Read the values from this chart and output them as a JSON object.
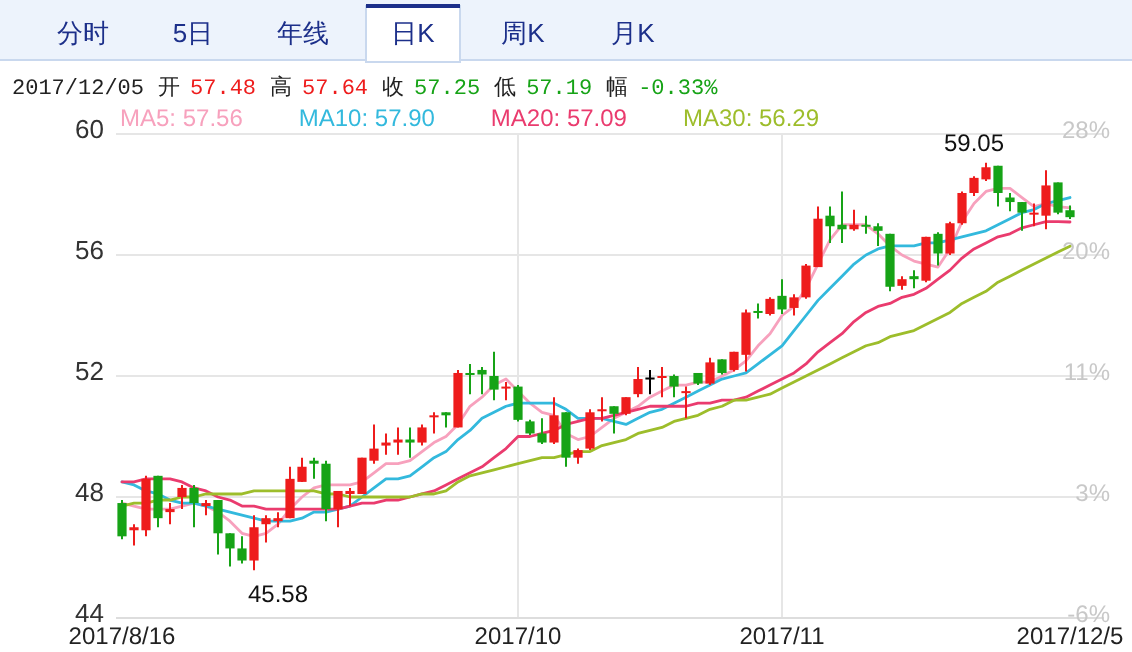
{
  "chart_data": {
    "type": "candlestick",
    "categories": [
      "2017/8/16",
      null,
      null,
      null,
      null,
      null,
      null,
      null,
      null,
      null,
      null,
      null,
      null,
      null,
      null,
      null,
      null,
      null,
      null,
      null,
      null,
      null,
      null,
      null,
      null,
      null,
      null,
      null,
      null,
      null,
      null,
      null,
      null,
      "2017/10",
      null,
      null,
      null,
      null,
      null,
      null,
      null,
      null,
      null,
      null,
      null,
      null,
      null,
      null,
      null,
      null,
      null,
      null,
      null,
      null,
      null,
      "2017/11",
      null,
      null,
      null,
      null,
      null,
      null,
      null,
      null,
      null,
      null,
      null,
      null,
      null,
      null,
      null,
      null,
      null,
      null,
      null,
      null,
      null,
      null,
      null,
      "2017/12/5"
    ],
    "ohlc": [
      [
        47.8,
        47.9,
        46.6,
        46.7
      ],
      [
        46.9,
        47.1,
        46.4,
        47.0
      ],
      [
        46.9,
        48.7,
        46.7,
        48.6
      ],
      [
        48.7,
        48.7,
        47.0,
        47.3
      ],
      [
        47.5,
        47.8,
        47.1,
        47.6
      ],
      [
        48.0,
        48.4,
        47.6,
        48.3
      ],
      [
        48.3,
        48.4,
        47.0,
        47.8
      ],
      [
        47.7,
        47.9,
        47.4,
        47.8
      ],
      [
        47.9,
        47.9,
        46.1,
        46.8
      ],
      [
        46.8,
        46.8,
        45.7,
        46.3
      ],
      [
        46.3,
        46.7,
        45.8,
        45.9
      ],
      [
        45.9,
        47.4,
        45.58,
        47.0
      ],
      [
        47.1,
        47.4,
        46.5,
        47.3
      ],
      [
        47.2,
        47.5,
        47.0,
        47.3
      ],
      [
        47.3,
        49.0,
        47.3,
        48.6
      ],
      [
        48.5,
        49.3,
        48.5,
        49.0
      ],
      [
        49.2,
        49.3,
        48.6,
        49.1
      ],
      [
        49.1,
        49.2,
        47.2,
        47.6
      ],
      [
        47.6,
        48.2,
        47.0,
        48.2
      ],
      [
        48.1,
        48.3,
        47.7,
        48.2
      ],
      [
        48.1,
        49.3,
        48.1,
        49.3
      ],
      [
        49.2,
        50.4,
        49.1,
        49.6
      ],
      [
        49.7,
        50.1,
        49.4,
        49.8
      ],
      [
        49.8,
        50.3,
        49.4,
        49.9
      ],
      [
        49.9,
        50.3,
        49.3,
        49.8
      ],
      [
        49.8,
        50.4,
        49.7,
        50.3
      ],
      [
        50.65,
        50.8,
        50.1,
        50.7
      ],
      [
        50.8,
        50.8,
        50.3,
        50.7
      ],
      [
        50.3,
        52.2,
        50.3,
        52.1
      ],
      [
        52.1,
        52.4,
        51.4,
        52.05
      ],
      [
        52.2,
        52.3,
        51.4,
        52.05
      ],
      [
        52.0,
        52.8,
        51.2,
        51.55
      ],
      [
        51.6,
        51.8,
        51.2,
        51.65
      ],
      [
        51.65,
        51.7,
        50.5,
        50.55
      ],
      [
        50.5,
        50.55,
        50.05,
        50.1
      ],
      [
        50.1,
        50.6,
        49.75,
        49.8
      ],
      [
        49.8,
        51.3,
        49.75,
        50.7
      ],
      [
        50.8,
        50.8,
        49.0,
        49.3
      ],
      [
        49.3,
        49.6,
        49.1,
        49.55
      ],
      [
        49.6,
        50.9,
        49.55,
        50.8
      ],
      [
        50.85,
        51.3,
        50.5,
        50.9
      ],
      [
        51.0,
        51.0,
        50.1,
        50.75
      ],
      [
        50.75,
        51.3,
        50.7,
        51.3
      ],
      [
        51.4,
        52.3,
        51.3,
        51.9
      ],
      [
        51.95,
        52.2,
        51.4,
        51.95
      ],
      [
        51.95,
        52.3,
        51.3,
        52.0
      ],
      [
        52.0,
        52.05,
        51.3,
        51.65
      ],
      [
        51.45,
        51.65,
        50.6,
        51.5
      ],
      [
        52.1,
        52.1,
        51.7,
        51.75
      ],
      [
        51.75,
        52.6,
        51.7,
        52.45
      ],
      [
        52.55,
        52.55,
        52.05,
        52.1
      ],
      [
        52.2,
        52.8,
        52.15,
        52.8
      ],
      [
        52.7,
        54.2,
        52.15,
        54.1
      ],
      [
        54.15,
        54.4,
        53.9,
        54.1
      ],
      [
        54.05,
        54.6,
        54.0,
        54.55
      ],
      [
        54.65,
        55.2,
        54.05,
        54.2
      ],
      [
        54.25,
        54.7,
        54.0,
        54.6
      ],
      [
        54.6,
        55.7,
        54.55,
        55.65
      ],
      [
        55.6,
        57.6,
        55.6,
        57.2
      ],
      [
        57.3,
        57.6,
        56.4,
        56.95
      ],
      [
        57.0,
        58.1,
        56.4,
        56.85
      ],
      [
        56.85,
        57.5,
        56.8,
        57.0
      ],
      [
        57.0,
        57.3,
        56.7,
        56.95
      ],
      [
        56.95,
        57.05,
        56.3,
        56.8
      ],
      [
        56.7,
        56.7,
        54.8,
        54.95
      ],
      [
        54.98,
        55.3,
        54.85,
        55.2
      ],
      [
        55.3,
        55.5,
        54.9,
        55.2
      ],
      [
        55.15,
        56.6,
        55.1,
        56.6
      ],
      [
        56.7,
        56.75,
        55.65,
        56.05
      ],
      [
        56.05,
        57.1,
        56.0,
        57.05
      ],
      [
        57.05,
        58.1,
        57.0,
        58.05
      ],
      [
        58.05,
        58.6,
        57.95,
        58.55
      ],
      [
        58.5,
        59.05,
        58.45,
        58.9
      ],
      [
        58.95,
        58.95,
        57.6,
        58.05
      ],
      [
        57.9,
        58.05,
        57.45,
        57.75
      ],
      [
        57.75,
        57.75,
        56.8,
        57.4
      ],
      [
        57.35,
        57.7,
        56.95,
        57.4
      ],
      [
        57.3,
        58.8,
        56.85,
        58.3
      ],
      [
        58.4,
        58.4,
        57.35,
        57.4
      ],
      [
        57.48,
        57.64,
        57.19,
        57.25
      ]
    ],
    "colors": [
      "#16a316",
      "#ee1c1c",
      "#ee1c1c",
      "#16a316",
      "#ee1c1c",
      "#ee1c1c",
      "#16a316",
      "#ee1c1c",
      "#16a316",
      "#16a316",
      "#16a316",
      "#ee1c1c",
      "#ee1c1c",
      "#ee1c1c",
      "#ee1c1c",
      "#ee1c1c",
      "#16a316",
      "#16a316",
      "#ee1c1c",
      "#ee1c1c",
      "#ee1c1c",
      "#ee1c1c",
      "#ee1c1c",
      "#ee1c1c",
      "#16a316",
      "#ee1c1c",
      "#ee1c1c",
      "#16a316",
      "#ee1c1c",
      "#16a316",
      "#16a316",
      "#16a316",
      "#ee1c1c",
      "#16a316",
      "#16a316",
      "#16a316",
      "#ee1c1c",
      "#16a316",
      "#ee1c1c",
      "#ee1c1c",
      "#ee1c1c",
      "#16a316",
      "#ee1c1c",
      "#ee1c1c",
      "#000000",
      "#ee1c1c",
      "#16a316",
      "#ee1c1c",
      "#16a316",
      "#ee1c1c",
      "#16a316",
      "#ee1c1c",
      "#ee1c1c",
      "#16a316",
      "#ee1c1c",
      "#16a316",
      "#ee1c1c",
      "#ee1c1c",
      "#ee1c1c",
      "#16a316",
      "#16a316",
      "#ee1c1c",
      "#16a316",
      "#16a316",
      "#16a316",
      "#ee1c1c",
      "#16a316",
      "#ee1c1c",
      "#16a316",
      "#ee1c1c",
      "#ee1c1c",
      "#ee1c1c",
      "#ee1c1c",
      "#16a316",
      "#16a316",
      "#16a316",
      "#ee1c1c",
      "#ee1c1c",
      "#16a316",
      "#16a316"
    ],
    "series": [
      {
        "name": "MA5: 57.56",
        "type": "line",
        "color": "#f7a1bd",
        "values": [
          47.8,
          47.7,
          47.6,
          47.6,
          47.6,
          47.7,
          47.8,
          47.7,
          47.5,
          47.2,
          46.8,
          46.7,
          46.8,
          47.1,
          47.6,
          48.0,
          48.3,
          48.4,
          48.4,
          48.4,
          48.5,
          48.8,
          49.1,
          49.1,
          49.2,
          49.5,
          49.8,
          50.0,
          50.4,
          51.0,
          51.3,
          51.7,
          51.9,
          51.5,
          51.1,
          50.8,
          50.7,
          50.1,
          49.9,
          50.0,
          50.3,
          50.6,
          50.8,
          51.0,
          51.3,
          51.5,
          51.7,
          51.7,
          51.8,
          51.8,
          52.0,
          52.2,
          52.5,
          53.0,
          53.4,
          54.0,
          54.3,
          54.9,
          55.7,
          56.5,
          57.0,
          57.0,
          57.0,
          56.7,
          56.3,
          56.0,
          55.8,
          55.7,
          55.6,
          56.2,
          57.1,
          57.7,
          58.1,
          58.2,
          58.2,
          57.9,
          57.6,
          57.7,
          57.6,
          57.56
        ]
      },
      {
        "name": "MA10: 57.90",
        "type": "line",
        "color": "#33b9dd",
        "values": [
          48.5,
          48.4,
          48.2,
          48.1,
          47.9,
          47.8,
          47.8,
          47.7,
          47.6,
          47.5,
          47.4,
          47.3,
          47.2,
          47.2,
          47.2,
          47.3,
          47.5,
          47.5,
          47.6,
          47.7,
          48.0,
          48.3,
          48.6,
          48.6,
          48.7,
          49.0,
          49.3,
          49.5,
          49.9,
          50.2,
          50.6,
          50.8,
          51.0,
          51.1,
          51.1,
          51.1,
          51.1,
          50.9,
          50.6,
          50.6,
          50.6,
          50.5,
          50.4,
          50.6,
          50.8,
          50.9,
          51.1,
          51.3,
          51.5,
          51.7,
          51.9,
          52.0,
          52.1,
          52.4,
          52.7,
          53.0,
          53.5,
          54.0,
          54.5,
          54.9,
          55.3,
          55.7,
          56.0,
          56.2,
          56.3,
          56.3,
          56.3,
          56.4,
          56.4,
          56.5,
          56.6,
          56.7,
          56.8,
          57.0,
          57.2,
          57.4,
          57.5,
          57.7,
          57.8,
          57.9
        ]
      },
      {
        "name": "MA20: 57.09",
        "type": "line",
        "color": "#ea3b6e",
        "values": [
          48.5,
          48.5,
          48.6,
          48.6,
          48.6,
          48.5,
          48.3,
          48.2,
          48.0,
          47.9,
          47.7,
          47.7,
          47.6,
          47.6,
          47.6,
          47.6,
          47.6,
          47.6,
          47.6,
          47.7,
          47.8,
          47.8,
          47.9,
          47.9,
          48.0,
          48.1,
          48.2,
          48.4,
          48.6,
          48.8,
          49.0,
          49.3,
          49.6,
          50.0,
          50.0,
          50.1,
          50.2,
          50.4,
          50.5,
          50.6,
          50.6,
          50.7,
          50.8,
          50.9,
          51.0,
          51.0,
          51.0,
          51.0,
          51.1,
          51.1,
          51.2,
          51.2,
          51.3,
          51.5,
          51.7,
          51.9,
          52.1,
          52.4,
          52.8,
          53.1,
          53.4,
          53.8,
          54.1,
          54.3,
          54.4,
          54.6,
          54.7,
          54.9,
          55.2,
          55.5,
          55.9,
          56.2,
          56.4,
          56.6,
          56.7,
          56.9,
          57.0,
          57.1,
          57.1,
          57.09
        ]
      },
      {
        "name": "MA30: 56.29",
        "type": "line",
        "color": "#9dbd2b",
        "values": [
          47.7,
          47.8,
          47.8,
          47.9,
          47.9,
          48.0,
          48.0,
          48.1,
          48.1,
          48.1,
          48.1,
          48.2,
          48.2,
          48.2,
          48.2,
          48.2,
          48.2,
          48.1,
          48.1,
          48.0,
          48.0,
          48.0,
          48.0,
          48.0,
          48.0,
          48.1,
          48.1,
          48.2,
          48.5,
          48.7,
          48.8,
          48.9,
          49.0,
          49.1,
          49.2,
          49.3,
          49.3,
          49.4,
          49.5,
          49.5,
          49.7,
          49.8,
          49.9,
          50.1,
          50.2,
          50.3,
          50.5,
          50.6,
          50.7,
          50.9,
          51.0,
          51.2,
          51.2,
          51.3,
          51.4,
          51.6,
          51.8,
          52.0,
          52.2,
          52.4,
          52.6,
          52.8,
          53.0,
          53.1,
          53.3,
          53.4,
          53.5,
          53.7,
          53.9,
          54.1,
          54.4,
          54.6,
          54.8,
          55.1,
          55.3,
          55.5,
          55.7,
          55.9,
          56.1,
          56.29
        ]
      }
    ],
    "ylim": [
      44,
      60
    ],
    "yticks": [
      44,
      48,
      52,
      56,
      60
    ],
    "y2lim": [
      -5.98,
      28.21
    ],
    "y2ticks": [
      {
        "value": -5.98,
        "label": "-6%"
      },
      {
        "value": 2.56,
        "label": "3%"
      },
      {
        "value": 11.11,
        "label": "11%"
      },
      {
        "value": 19.66,
        "label": "20%"
      },
      {
        "value": 28.21,
        "label": "28%"
      }
    ],
    "grid": true,
    "legend": "top",
    "annotations": [
      "分时",
      "5日",
      "年线",
      "日K",
      "周K",
      "月K",
      "2017/12/05",
      "开",
      "57.48",
      "高",
      "57.64",
      "收",
      "57.25",
      "低",
      "57.19",
      "幅",
      "-0.33%",
      "59.05",
      "45.58"
    ]
  }
}
